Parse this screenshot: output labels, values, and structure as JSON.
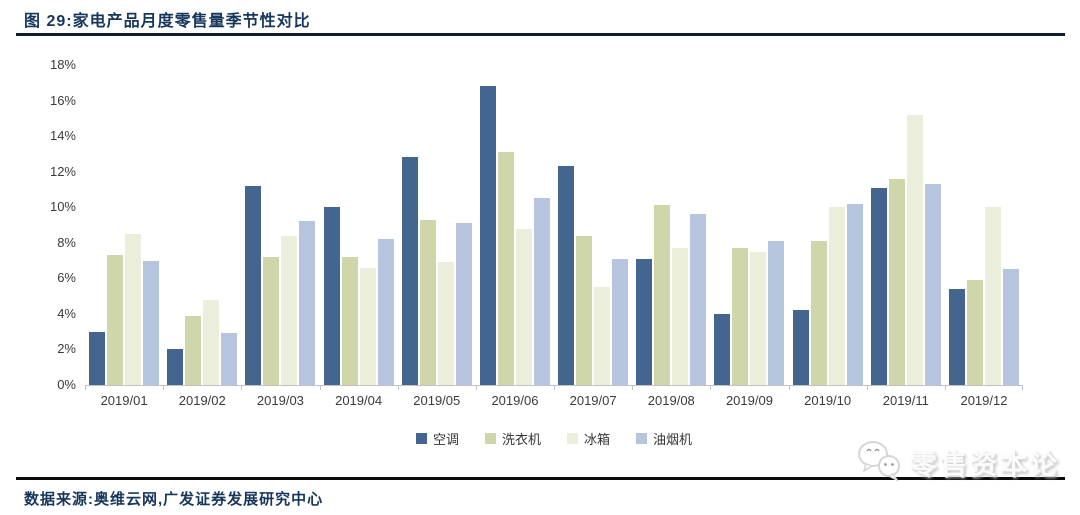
{
  "header": {
    "title": "图 29:家电产品月度零售量季节性对比"
  },
  "chart_data": {
    "type": "bar",
    "title": "家电产品月度零售量季节性对比",
    "categories": [
      "2019/01",
      "2019/02",
      "2019/03",
      "2019/04",
      "2019/05",
      "2019/06",
      "2019/07",
      "2019/08",
      "2019/09",
      "2019/10",
      "2019/11",
      "2019/12"
    ],
    "series": [
      {
        "name": "空调",
        "color": "#44658F",
        "values": [
          3.0,
          2.0,
          11.2,
          10.0,
          12.8,
          16.8,
          12.3,
          7.1,
          4.0,
          4.2,
          11.1,
          5.4
        ]
      },
      {
        "name": "洗衣机",
        "color": "#CFD6AA",
        "values": [
          7.3,
          3.9,
          7.2,
          7.2,
          9.3,
          13.1,
          8.4,
          10.1,
          7.7,
          8.1,
          11.6,
          5.9
        ]
      },
      {
        "name": "冰箱",
        "color": "#EAEEDB",
        "values": [
          8.5,
          4.8,
          8.4,
          6.6,
          6.9,
          8.8,
          5.5,
          7.7,
          7.5,
          10.0,
          15.2,
          10.0
        ]
      },
      {
        "name": "油烟机",
        "color": "#B7C4DE",
        "values": [
          7.0,
          2.9,
          9.2,
          8.2,
          9.1,
          10.5,
          7.1,
          9.6,
          8.1,
          10.2,
          11.3,
          6.5
        ]
      }
    ],
    "xlabel": "",
    "ylabel": "",
    "ylim": [
      0,
      18
    ],
    "yticks": [
      {
        "value": 0,
        "label": "0%"
      },
      {
        "value": 2,
        "label": "2%"
      },
      {
        "value": 4,
        "label": "4%"
      },
      {
        "value": 6,
        "label": "6%"
      },
      {
        "value": 8,
        "label": "8%"
      },
      {
        "value": 10,
        "label": "10%"
      },
      {
        "value": 12,
        "label": "12%"
      },
      {
        "value": 14,
        "label": "14%"
      },
      {
        "value": 16,
        "label": "16%"
      },
      {
        "value": 18,
        "label": "18%"
      }
    ],
    "grid": false,
    "legend_position": "bottom"
  },
  "footer": {
    "source": "数据来源:奥维云网,广发证券发展研究中心"
  },
  "watermark": {
    "text": "零售资本论",
    "icon": "wechat-icon"
  },
  "colors": {
    "title_text": "#17365C",
    "title_rule": "#121C30",
    "bottom_rule": "#0B0B0B",
    "axis_line": "#C3C3C3",
    "tick_text": "#3B3B3B"
  }
}
